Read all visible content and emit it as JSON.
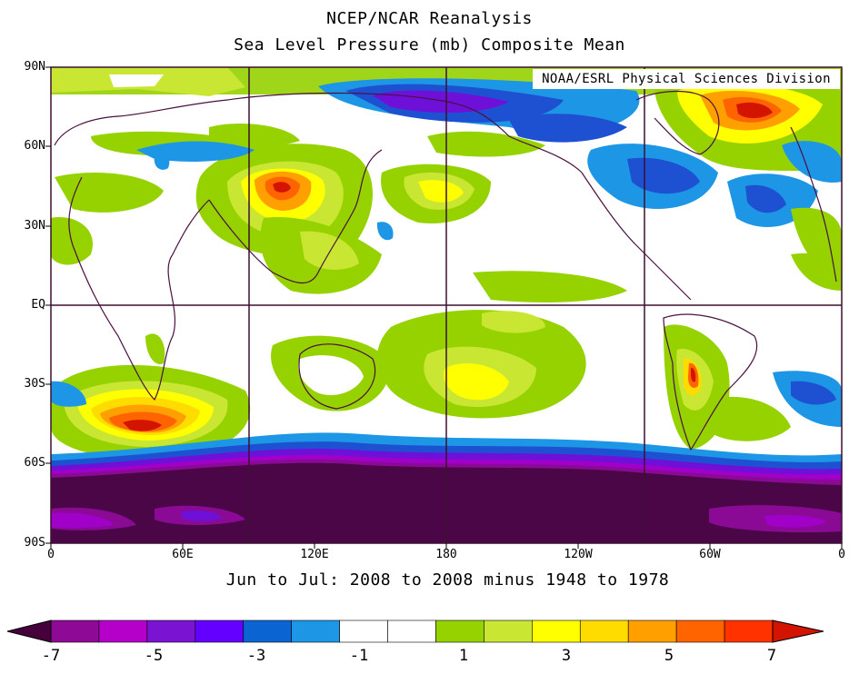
{
  "title": "NCEP/NCAR Reanalysis",
  "subtitle": "Sea Level Pressure (mb) Composite Mean",
  "period_label": "Jun to Jul: 2008 to 2008 minus 1948 to 1978",
  "credit": "NOAA/ESRL Physical Sciences Division",
  "lat_ticks": [
    "90N",
    "60N",
    "30N",
    "EQ",
    "30S",
    "60S",
    "90S"
  ],
  "lon_ticks": [
    "0",
    "60E",
    "120E",
    "180",
    "120W",
    "60W",
    "0"
  ],
  "colorbar": {
    "labels": [
      "-7",
      "-5",
      "-3",
      "-1",
      "1",
      "3",
      "5",
      "7"
    ],
    "colors": [
      "#5a0a5a",
      "#8e0a96",
      "#b400c8",
      "#7a14d2",
      "#6400ff",
      "#0a64d2",
      "#1e96e6",
      "#ffffff",
      "#ffffff",
      "#96d200",
      "#c8e632",
      "#ffff00",
      "#ffdc00",
      "#ffa000",
      "#ff6400",
      "#ff3200",
      "#d21400"
    ],
    "low_cap": "#46003c",
    "high_cap": "#d21400"
  },
  "palette": {
    "boundary": "#4a1040",
    "grid": "#3c1030",
    "n7": "#4a0646",
    "n6": "#8a0a96",
    "n5": "#a000c8",
    "n4": "#6e10d8",
    "n3": "#1e50d2",
    "n2": "#1e96e6",
    "p1": "#96d200",
    "p2": "#c8e632",
    "p3": "#ffff00",
    "p4": "#ffdc00",
    "p5": "#ffa000",
    "p6": "#ff6400",
    "p7": "#d21400"
  }
}
